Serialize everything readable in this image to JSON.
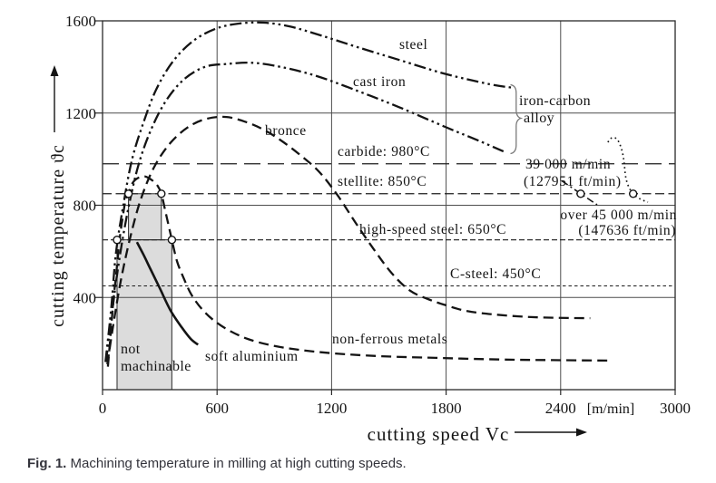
{
  "figure": {
    "caption_prefix": "Fig. 1.",
    "caption_text": "Machining temperature in milling at high cutting speeds."
  },
  "chart_data": {
    "type": "line",
    "title": "",
    "xlabel": "cutting speed Vc",
    "ylabel": "cutting temperature ϑc",
    "x_unit_label": "[m/min]",
    "xlim": [
      0,
      3000
    ],
    "ylim": [
      0,
      1600
    ],
    "x_ticks": [
      0,
      600,
      1200,
      1800,
      2400,
      3000
    ],
    "y_ticks": [
      400,
      800,
      1200,
      1600
    ],
    "grid": true,
    "legend_position": "inline-labels",
    "series": [
      {
        "name": "steel",
        "label": "steel",
        "line_style": "dash-dot-dot",
        "points": [
          [
            15,
            120
          ],
          [
            45,
            350
          ],
          [
            70,
            590
          ],
          [
            110,
            805
          ],
          [
            155,
            1000
          ],
          [
            215,
            1160
          ],
          [
            280,
            1300
          ],
          [
            365,
            1420
          ],
          [
            470,
            1510
          ],
          [
            590,
            1565
          ],
          [
            710,
            1588
          ],
          [
            845,
            1592
          ],
          [
            985,
            1575
          ],
          [
            1150,
            1535
          ],
          [
            1340,
            1485
          ],
          [
            1555,
            1430
          ],
          [
            1795,
            1370
          ],
          [
            2030,
            1325
          ],
          [
            2150,
            1310
          ]
        ]
      },
      {
        "name": "cast iron",
        "label": "cast iron",
        "line_style": "dash-dot-dot",
        "points": [
          [
            18,
            120
          ],
          [
            50,
            335
          ],
          [
            85,
            550
          ],
          [
            130,
            765
          ],
          [
            185,
            965
          ],
          [
            250,
            1120
          ],
          [
            330,
            1250
          ],
          [
            425,
            1345
          ],
          [
            535,
            1400
          ],
          [
            650,
            1413
          ],
          [
            785,
            1418
          ],
          [
            935,
            1400
          ],
          [
            1125,
            1360
          ],
          [
            1340,
            1295
          ],
          [
            1555,
            1225
          ],
          [
            1795,
            1140
          ],
          [
            1985,
            1075
          ],
          [
            2110,
            1030
          ]
        ]
      },
      {
        "name": "bronce",
        "label": "bronce",
        "line_style": "dashed",
        "points": [
          [
            25,
            110
          ],
          [
            55,
            275
          ],
          [
            95,
            470
          ],
          [
            145,
            660
          ],
          [
            200,
            825
          ],
          [
            270,
            965
          ],
          [
            355,
            1070
          ],
          [
            450,
            1140
          ],
          [
            545,
            1175
          ],
          [
            650,
            1183
          ],
          [
            755,
            1160
          ],
          [
            850,
            1125
          ],
          [
            945,
            1075
          ],
          [
            1040,
            1015
          ],
          [
            1135,
            945
          ],
          [
            1230,
            845
          ],
          [
            1325,
            725
          ],
          [
            1420,
            610
          ],
          [
            1515,
            505
          ],
          [
            1610,
            430
          ],
          [
            1705,
            393
          ],
          [
            1800,
            366
          ],
          [
            1910,
            341
          ],
          [
            2055,
            326
          ],
          [
            2245,
            315
          ],
          [
            2435,
            311
          ],
          [
            2555,
            310
          ]
        ]
      },
      {
        "name": "non-ferrous metals",
        "label": "non-ferrous metals",
        "line_style": "dashed",
        "points": [
          [
            28,
            100
          ],
          [
            42,
            235
          ],
          [
            58,
            395
          ],
          [
            74,
            525
          ],
          [
            89,
            650
          ],
          [
            105,
            745
          ],
          [
            120,
            818
          ],
          [
            136,
            850
          ],
          [
            157,
            896
          ],
          [
            185,
            918
          ],
          [
            223,
            925
          ],
          [
            260,
            908
          ],
          [
            288,
            885
          ],
          [
            308,
            850
          ],
          [
            328,
            778
          ],
          [
            345,
            716
          ],
          [
            363,
            650
          ],
          [
            390,
            558
          ],
          [
            425,
            484
          ],
          [
            465,
            413
          ],
          [
            520,
            350
          ],
          [
            585,
            299
          ],
          [
            665,
            256
          ],
          [
            760,
            220
          ],
          [
            880,
            193
          ],
          [
            1030,
            173
          ],
          [
            1220,
            157
          ],
          [
            1460,
            145
          ],
          [
            1745,
            138
          ],
          [
            2080,
            131
          ],
          [
            2360,
            128
          ],
          [
            2660,
            126
          ]
        ]
      },
      {
        "name": "soft aluminium",
        "label": "soft aluminium",
        "line_style": "solid",
        "points": [
          [
            180,
            640
          ],
          [
            215,
            585
          ],
          [
            250,
            525
          ],
          [
            300,
            440
          ],
          [
            355,
            345
          ],
          [
            415,
            270
          ],
          [
            462,
            220
          ],
          [
            500,
            195
          ]
        ]
      }
    ],
    "tool_limit_lines": [
      {
        "label": "carbide: 980°C",
        "temp_c": 980,
        "line_style": "long-dash"
      },
      {
        "label": "stellite: 850°C",
        "temp_c": 850,
        "line_style": "medium-dash"
      },
      {
        "label": "high-speed steel: 650°C",
        "temp_c": 650,
        "line_style": "short-dash"
      },
      {
        "label": "C-steel: 450°C",
        "temp_c": 450,
        "line_style": "fine-dash"
      }
    ],
    "bracket": {
      "label_line1": "iron-carbon",
      "label_line2": "alloy"
    },
    "not_machinable_region": {
      "label_line1": "not",
      "label_line2": "machinable",
      "steps": [
        {
          "vc": [
            76,
            363
          ],
          "temp": [
            0,
            650
          ]
        },
        {
          "vc": [
            136,
            308
          ],
          "temp": [
            650,
            850
          ]
        }
      ]
    },
    "speed_markers": [
      {
        "label": "39 000 m/min",
        "sublabel": "(127951 ft/min)",
        "x_position_vc": 2505,
        "temp_c": 850
      },
      {
        "label": "over 45 000 m/min",
        "sublabel": "(147636 ft/min)",
        "x_position_vc": 2780,
        "temp_c": 850
      }
    ]
  }
}
